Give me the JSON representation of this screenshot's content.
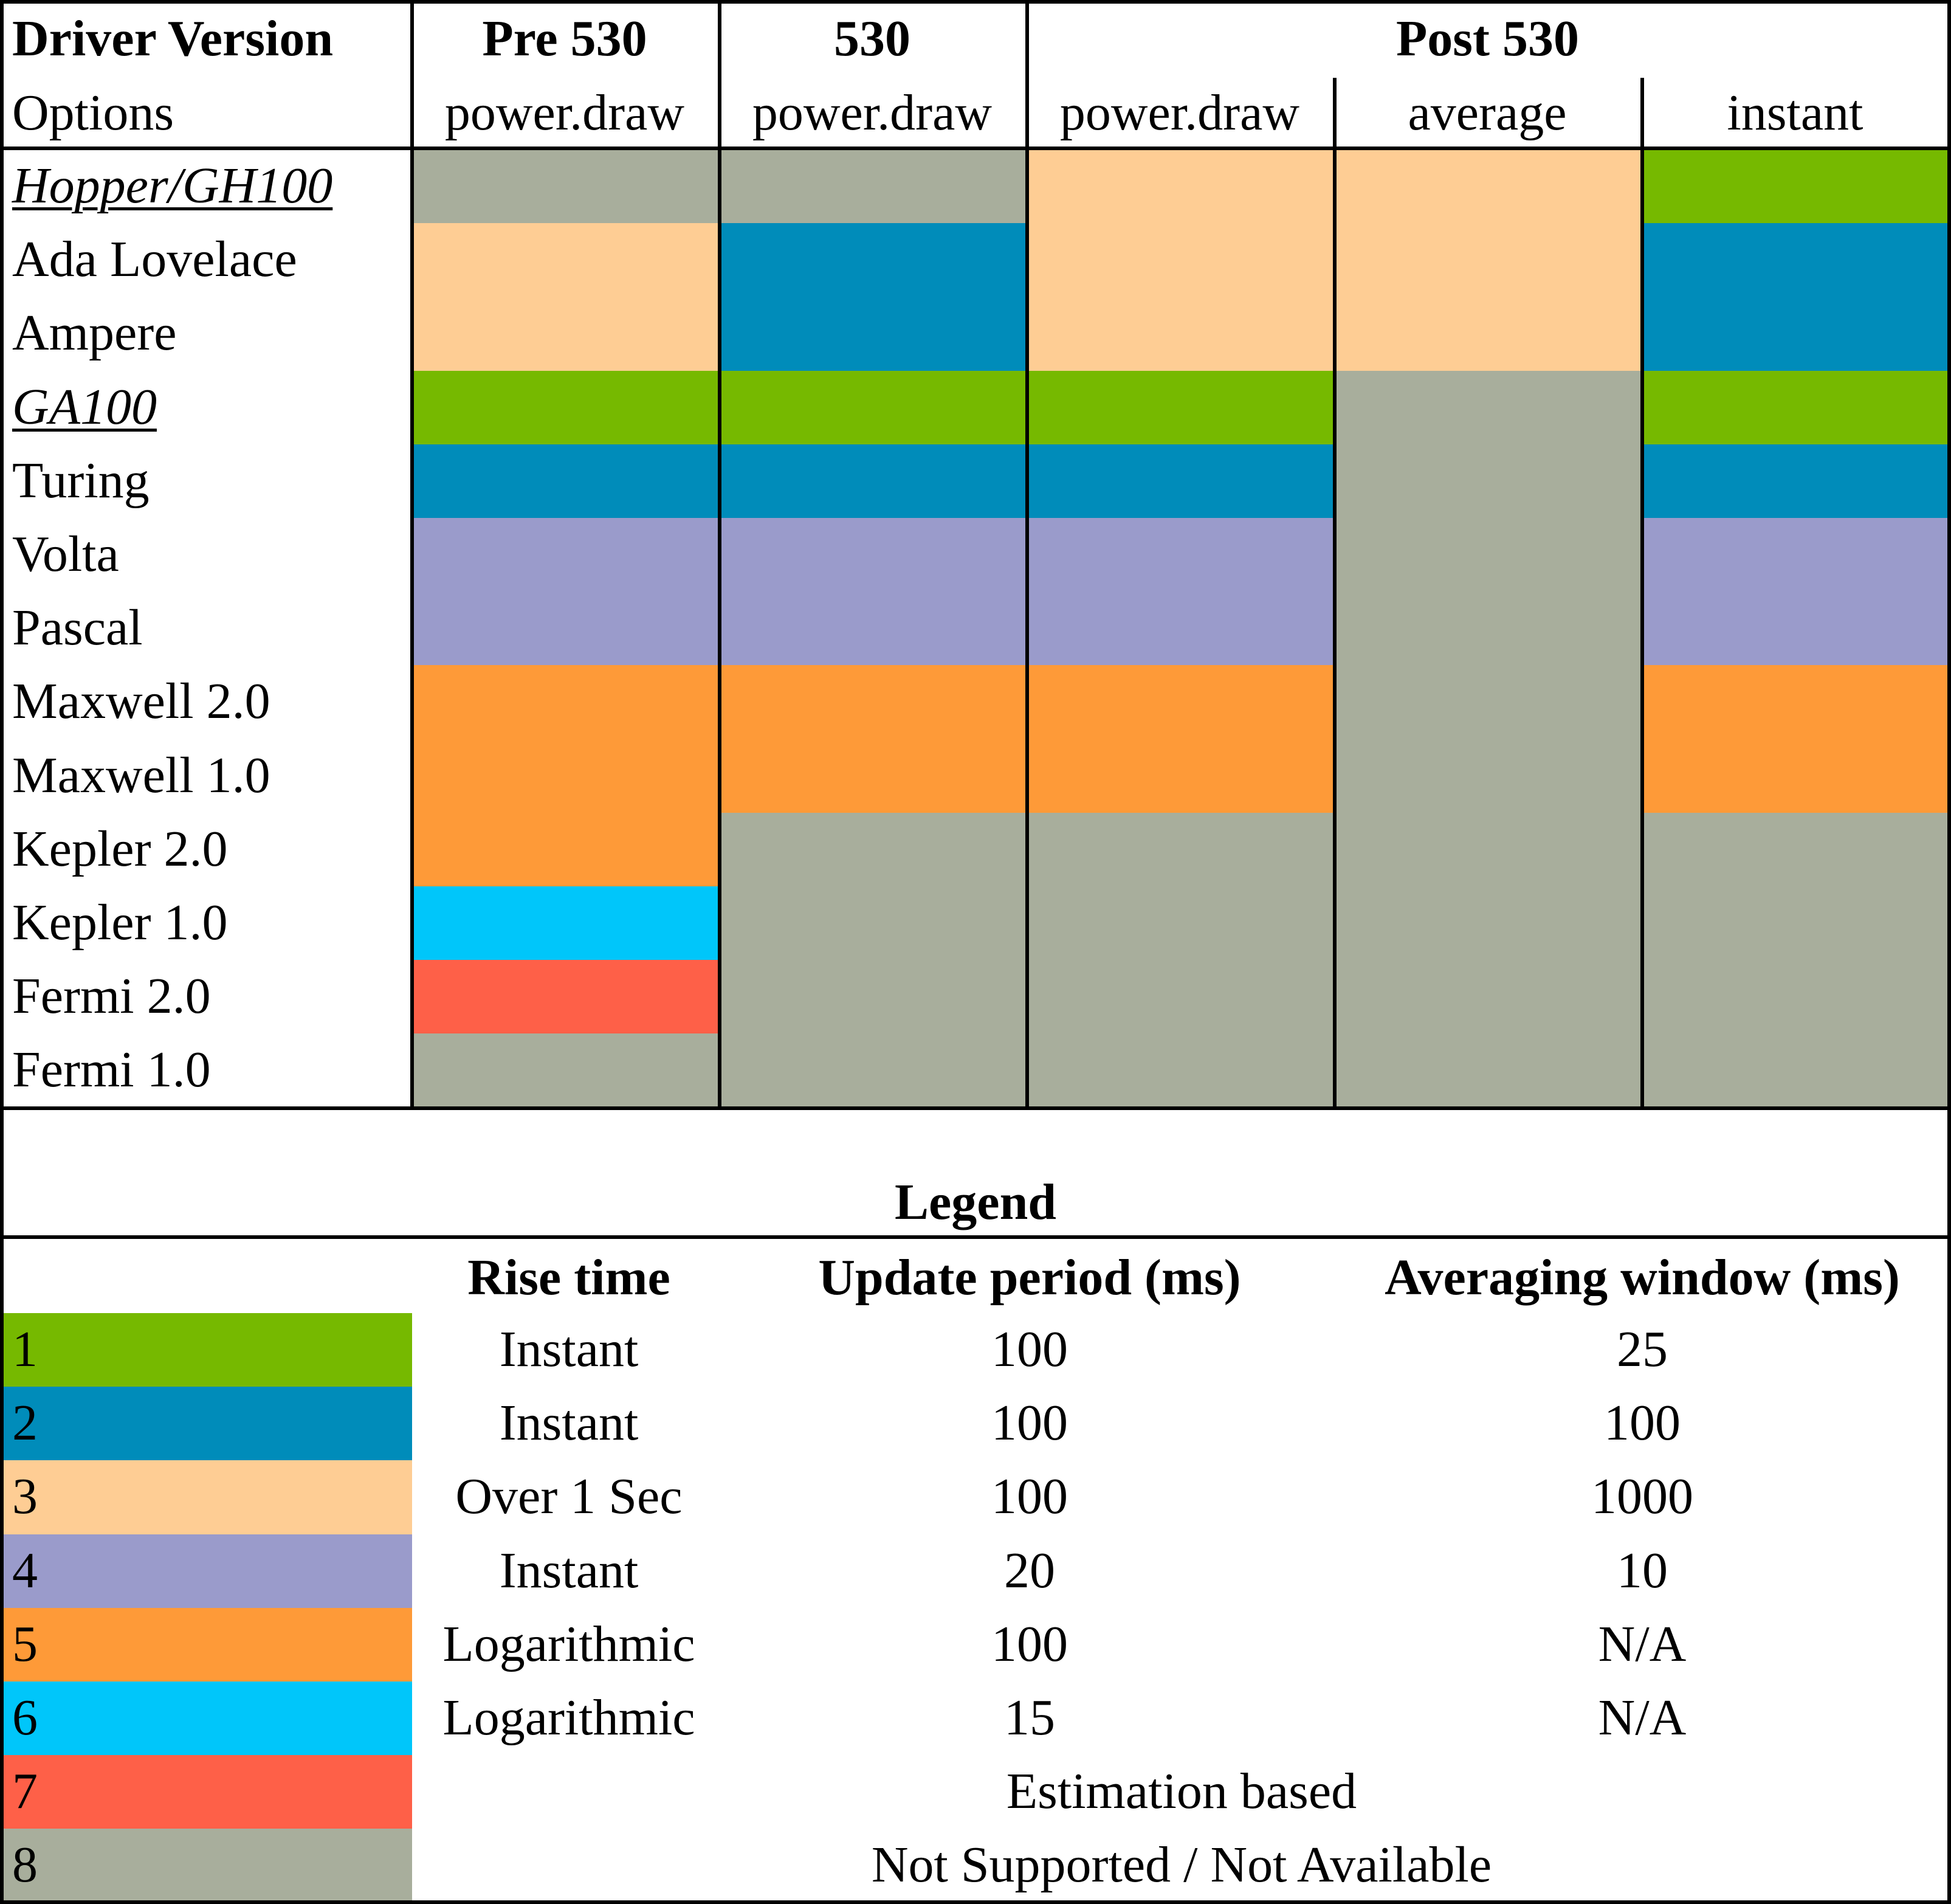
{
  "chart_data": {
    "type": "table",
    "header": {
      "corner_top": "Driver Version",
      "corner_bottom": "Options",
      "groups": [
        "Pre 530",
        "530",
        "Post 530"
      ],
      "columns": [
        "power.draw",
        "power.draw",
        "power.draw",
        "average",
        "instant"
      ]
    },
    "rows": [
      {
        "label": "Hopper/GH100",
        "underline": true,
        "cells": [
          8,
          8,
          3,
          3,
          1
        ]
      },
      {
        "label": "Ada Lovelace",
        "underline": false,
        "cells": [
          3,
          2,
          3,
          3,
          2
        ]
      },
      {
        "label": "Ampere",
        "underline": false,
        "cells": [
          3,
          2,
          3,
          3,
          2
        ]
      },
      {
        "label": "GA100",
        "underline": true,
        "cells": [
          1,
          1,
          1,
          8,
          1
        ]
      },
      {
        "label": "Turing",
        "underline": false,
        "cells": [
          2,
          2,
          2,
          8,
          2
        ]
      },
      {
        "label": "Volta",
        "underline": false,
        "cells": [
          4,
          4,
          4,
          8,
          4
        ]
      },
      {
        "label": "Pascal",
        "underline": false,
        "cells": [
          4,
          4,
          4,
          8,
          4
        ]
      },
      {
        "label": "Maxwell 2.0",
        "underline": false,
        "cells": [
          5,
          5,
          5,
          8,
          5
        ]
      },
      {
        "label": "Maxwell 1.0",
        "underline": false,
        "cells": [
          5,
          5,
          5,
          8,
          5
        ]
      },
      {
        "label": "Kepler 2.0",
        "underline": false,
        "cells": [
          5,
          8,
          8,
          8,
          8
        ]
      },
      {
        "label": "Kepler 1.0",
        "underline": false,
        "cells": [
          6,
          8,
          8,
          8,
          8
        ]
      },
      {
        "label": "Fermi 2.0",
        "underline": false,
        "cells": [
          7,
          8,
          8,
          8,
          8
        ]
      },
      {
        "label": "Fermi 1.0",
        "underline": false,
        "cells": [
          8,
          8,
          8,
          8,
          8
        ]
      }
    ],
    "legend": {
      "title": "Legend",
      "headers": [
        "Rise time",
        "Update period (ms)",
        "Averaging window (ms)"
      ],
      "entries": [
        {
          "id": "1",
          "color": "#76b900",
          "rise": "Instant",
          "update": "100",
          "window": "25"
        },
        {
          "id": "2",
          "color": "#008cba",
          "rise": "Instant",
          "update": "100",
          "window": "100"
        },
        {
          "id": "3",
          "color": "#fecd94",
          "rise": "Over 1 Sec",
          "update": "100",
          "window": "1000"
        },
        {
          "id": "4",
          "color": "#9a9bcb",
          "rise": "Instant",
          "update": "20",
          "window": "10"
        },
        {
          "id": "5",
          "color": "#fe9a38",
          "rise": "Logarithmic",
          "update": "100",
          "window": "N/A"
        },
        {
          "id": "6",
          "color": "#00c6fa",
          "rise": "Logarithmic",
          "update": "15",
          "window": "N/A"
        },
        {
          "id": "7",
          "color": "#fe6048",
          "span": "Estimation based"
        },
        {
          "id": "8",
          "color": "#a8ae9c",
          "span": "Not Supported / Not Available"
        }
      ]
    }
  }
}
